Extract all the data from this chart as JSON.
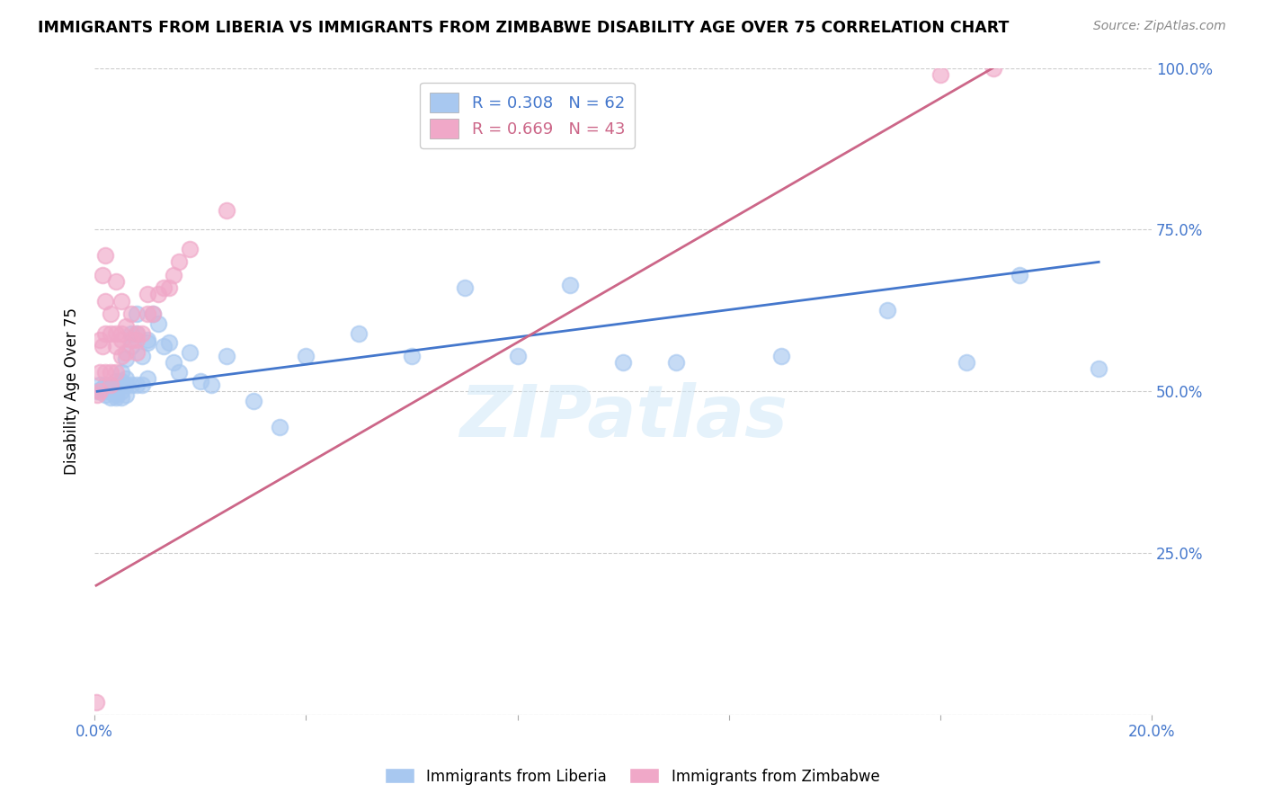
{
  "title": "IMMIGRANTS FROM LIBERIA VS IMMIGRANTS FROM ZIMBABWE DISABILITY AGE OVER 75 CORRELATION CHART",
  "source": "Source: ZipAtlas.com",
  "ylabel": "Disability Age Over 75",
  "xlim": [
    0.0,
    0.2
  ],
  "ylim": [
    0.0,
    1.0
  ],
  "xtick_vals": [
    0.0,
    0.04,
    0.08,
    0.12,
    0.16,
    0.2
  ],
  "xtick_labels": [
    "0.0%",
    "",
    "",
    "",
    "",
    "20.0%"
  ],
  "ytick_vals": [
    0.0,
    0.25,
    0.5,
    0.75,
    1.0
  ],
  "ytick_labels": [
    "",
    "25.0%",
    "50.0%",
    "75.0%",
    "100.0%"
  ],
  "liberia_R": 0.308,
  "liberia_N": 62,
  "zimbabwe_R": 0.669,
  "zimbabwe_N": 43,
  "liberia_color": "#a8c8f0",
  "zimbabwe_color": "#f0a8c8",
  "liberia_line_color": "#4477cc",
  "zimbabwe_line_color": "#cc6688",
  "watermark": "ZIPatlas",
  "liberia_x": [
    0.0005,
    0.001,
    0.001,
    0.0015,
    0.002,
    0.002,
    0.002,
    0.0025,
    0.003,
    0.003,
    0.003,
    0.003,
    0.004,
    0.004,
    0.004,
    0.004,
    0.004,
    0.005,
    0.005,
    0.005,
    0.005,
    0.005,
    0.006,
    0.006,
    0.006,
    0.006,
    0.007,
    0.007,
    0.007,
    0.008,
    0.008,
    0.008,
    0.009,
    0.009,
    0.01,
    0.01,
    0.01,
    0.011,
    0.012,
    0.013,
    0.014,
    0.015,
    0.016,
    0.018,
    0.02,
    0.022,
    0.025,
    0.03,
    0.035,
    0.04,
    0.05,
    0.06,
    0.07,
    0.08,
    0.09,
    0.1,
    0.11,
    0.13,
    0.15,
    0.165,
    0.175,
    0.19
  ],
  "liberia_y": [
    0.5,
    0.5,
    0.51,
    0.505,
    0.5,
    0.51,
    0.495,
    0.505,
    0.5,
    0.51,
    0.49,
    0.5,
    0.515,
    0.5,
    0.49,
    0.505,
    0.495,
    0.53,
    0.51,
    0.5,
    0.49,
    0.515,
    0.55,
    0.52,
    0.51,
    0.495,
    0.59,
    0.57,
    0.51,
    0.62,
    0.59,
    0.51,
    0.555,
    0.51,
    0.58,
    0.575,
    0.52,
    0.62,
    0.605,
    0.57,
    0.575,
    0.545,
    0.53,
    0.56,
    0.515,
    0.51,
    0.555,
    0.485,
    0.445,
    0.555,
    0.59,
    0.555,
    0.66,
    0.555,
    0.665,
    0.545,
    0.545,
    0.555,
    0.625,
    0.545,
    0.68,
    0.535
  ],
  "zimbabwe_x": [
    0.0003,
    0.0005,
    0.001,
    0.001,
    0.001,
    0.0015,
    0.0015,
    0.002,
    0.002,
    0.002,
    0.002,
    0.003,
    0.003,
    0.003,
    0.003,
    0.004,
    0.004,
    0.004,
    0.004,
    0.005,
    0.005,
    0.005,
    0.005,
    0.006,
    0.006,
    0.007,
    0.007,
    0.008,
    0.008,
    0.008,
    0.009,
    0.01,
    0.01,
    0.011,
    0.012,
    0.013,
    0.014,
    0.015,
    0.016,
    0.018,
    0.025,
    0.16,
    0.17
  ],
  "zimbabwe_y": [
    0.02,
    0.495,
    0.5,
    0.53,
    0.58,
    0.57,
    0.68,
    0.53,
    0.59,
    0.64,
    0.71,
    0.51,
    0.53,
    0.59,
    0.62,
    0.53,
    0.57,
    0.59,
    0.67,
    0.555,
    0.58,
    0.59,
    0.64,
    0.56,
    0.6,
    0.58,
    0.62,
    0.56,
    0.58,
    0.59,
    0.59,
    0.62,
    0.65,
    0.62,
    0.65,
    0.66,
    0.66,
    0.68,
    0.7,
    0.72,
    0.78,
    0.99,
    1.0
  ],
  "liberia_trendline_x": [
    0.0005,
    0.19
  ],
  "liberia_trendline_y": [
    0.5,
    0.7
  ],
  "zimbabwe_trendline_x": [
    0.0003,
    0.17
  ],
  "zimbabwe_trendline_y": [
    0.2,
    1.0
  ]
}
